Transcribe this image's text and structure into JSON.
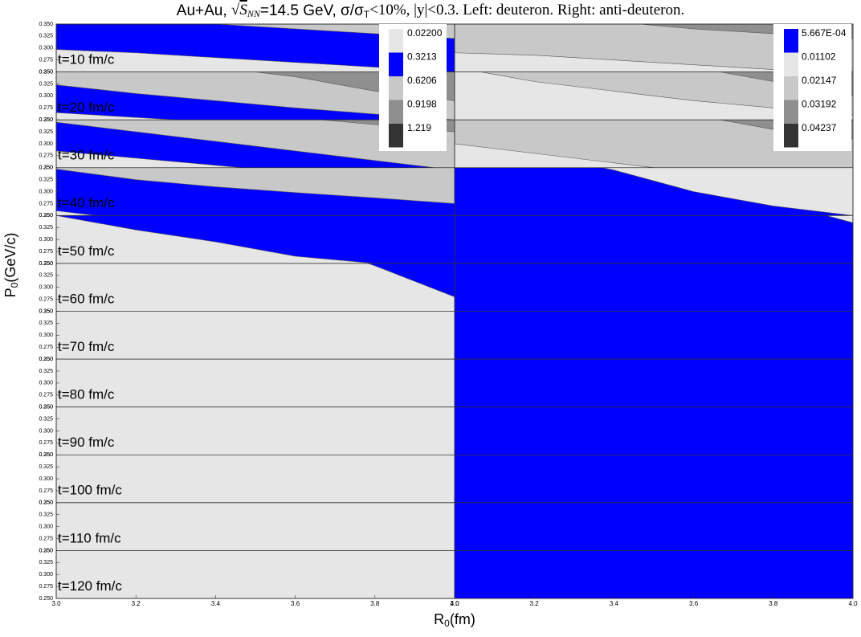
{
  "chart_data": {
    "type": "contour",
    "title": [
      "Au+Au, ",
      "√",
      "S",
      "NN",
      "=14.5 GeV, σ/σ",
      "T",
      "<10%, |y|<0.3. Left: deuteron. Right: anti-deuteron."
    ],
    "xlabel": [
      "R",
      "0",
      "(fm)"
    ],
    "ylabel": [
      "P",
      "0",
      "(GeV/c)"
    ],
    "xlim": [
      3.0,
      4.0
    ],
    "xticks": [
      {
        "value": 3.0,
        "label": "3.0"
      },
      {
        "value": 3.2,
        "label": "3.2"
      },
      {
        "value": 3.4,
        "label": "3.4"
      },
      {
        "value": 3.6,
        "label": "3.6"
      },
      {
        "value": 3.8,
        "label": "3.8"
      },
      {
        "value": 4.0,
        "label": "4.0"
      }
    ],
    "ylim": [
      0.25,
      0.35
    ],
    "yticks": [
      {
        "value": 0.25,
        "label": "0.250"
      },
      {
        "value": 0.275,
        "label": "0.275"
      },
      {
        "value": 0.3,
        "label": "0.300"
      },
      {
        "value": 0.325,
        "label": "0.325"
      },
      {
        "value": 0.35,
        "label": "0.350"
      }
    ],
    "x": [
      3.0,
      3.2,
      3.4,
      3.6,
      3.8,
      4.0
    ],
    "rows": [
      "t=10 fm/c",
      "t=20 fm/c",
      "t=30 fm/c",
      "t=40 fm/c",
      "t=50 fm/c",
      "t=60 fm/c",
      "t=70 fm/c",
      "t=80 fm/c",
      "t=90 fm/c",
      "t=100 fm/c",
      "t=110 fm/c",
      "t=120 fm/c"
    ],
    "panels": [
      {
        "levels": [
          {
            "value": 0.022,
            "label": "0.02200",
            "color": "#e6e6e6"
          },
          {
            "value": 0.3213,
            "label": "0.3213",
            "color": "#0000ff"
          },
          {
            "value": 0.6206,
            "label": "0.6206",
            "color": "#c8c8c8"
          },
          {
            "value": 0.9198,
            "label": "0.9198",
            "color": "#8f8f8f"
          },
          {
            "value": 1.219,
            "label": "1.219",
            "color": "#333333"
          }
        ],
        "rows": [
          {
            "bands": [
              0,
              1,
              2
            ],
            "boundaries": [
              [
                0.297,
                0.29,
                0.28,
                0.27,
                0.26,
                0.25
              ],
              [
                0.37,
                0.36,
                0.35,
                0.34,
                0.33,
                0.32
              ]
            ]
          },
          {
            "bands": [
              0,
              1,
              2,
              3
            ],
            "boundaries": [
              [
                0.265,
                0.255,
                0.245,
                0.235,
                0.225,
                0.215
              ],
              [
                0.323,
                0.305,
                0.29,
                0.275,
                0.262,
                0.25
              ],
              [
                0.4,
                0.38,
                0.36,
                0.34,
                0.31,
                0.29
              ]
            ]
          },
          {
            "bands": [
              0,
              1,
              2,
              3
            ],
            "boundaries": [
              [
                0.285,
                0.27,
                0.255,
                0.24,
                0.225,
                0.21
              ],
              [
                0.345,
                0.325,
                0.305,
                0.285,
                0.265,
                0.245
              ],
              [
                0.4,
                0.385,
                0.37,
                0.355,
                0.34,
                0.325
              ]
            ]
          },
          {
            "bands": [
              0,
              1,
              2
            ],
            "boundaries": [
              [
                0.26,
                0.24,
                0.22,
                0.2,
                0.18,
                0.16
              ],
              [
                0.347,
                0.325,
                0.31,
                0.298,
                0.287,
                0.275
              ]
            ]
          },
          {
            "bands": [
              0,
              1,
              2
            ],
            "boundaries": [
              [
                0.35,
                0.32,
                0.295,
                0.265,
                0.25,
                0.24
              ],
              [
                0.36,
                0.36,
                0.37,
                0.38,
                0.39,
                0.4
              ]
            ]
          },
          {
            "bands": [
              0,
              1
            ],
            "boundaries": [
              [
                0.5,
                0.5,
                0.45,
                0.4,
                0.345,
                0.28
              ]
            ]
          },
          {
            "bands": [
              0
            ],
            "boundaries": []
          },
          {
            "bands": [
              0
            ],
            "boundaries": []
          },
          {
            "bands": [
              0
            ],
            "boundaries": []
          },
          {
            "bands": [
              0
            ],
            "boundaries": []
          },
          {
            "bands": [
              0
            ],
            "boundaries": []
          },
          {
            "bands": [
              0
            ],
            "boundaries": []
          }
        ]
      },
      {
        "levels": [
          {
            "value": 0.0005667,
            "label": "5.667E-04",
            "color": "#0000ff"
          },
          {
            "value": 0.01102,
            "label": "0.01102",
            "color": "#e6e6e6"
          },
          {
            "value": 0.02147,
            "label": "0.02147",
            "color": "#c8c8c8"
          },
          {
            "value": 0.03192,
            "label": "0.03192",
            "color": "#8f8f8f"
          },
          {
            "value": 0.04237,
            "label": "0.04237",
            "color": "#333333"
          }
        ],
        "rows": [
          {
            "bands": [
              1,
              2,
              3
            ],
            "boundaries": [
              [
                0.29,
                0.285,
                0.275,
                0.265,
                0.255,
                0.245
              ],
              [
                0.38,
                0.37,
                0.355,
                0.34,
                0.33,
                0.32
              ]
            ]
          },
          {
            "bands": [
              1,
              2,
              3
            ],
            "boundaries": [
              [
                0.36,
                0.33,
                0.31,
                0.29,
                0.275,
                0.26
              ],
              [
                0.45,
                0.42,
                0.39,
                0.36,
                0.33,
                0.3
              ]
            ]
          },
          {
            "bands": [
              1,
              2,
              3
            ],
            "boundaries": [
              [
                0.3,
                0.28,
                0.26,
                0.24,
                0.22,
                0.2
              ],
              [
                0.42,
                0.4,
                0.38,
                0.36,
                0.33,
                0.31
              ]
            ]
          },
          {
            "bands": [
              0,
              1
            ],
            "boundaries": [
              [
                0.4,
                0.38,
                0.345,
                0.3,
                0.27,
                0.25
              ]
            ]
          },
          {
            "bands": [
              0,
              1
            ],
            "boundaries": [
              [
                0.5,
                0.5,
                0.5,
                0.5,
                0.38,
                0.335
              ]
            ]
          },
          {
            "bands": [
              0
            ],
            "boundaries": []
          },
          {
            "bands": [
              0
            ],
            "boundaries": []
          },
          {
            "bands": [
              0
            ],
            "boundaries": []
          },
          {
            "bands": [
              0
            ],
            "boundaries": []
          },
          {
            "bands": [
              0
            ],
            "boundaries": []
          },
          {
            "bands": [
              0
            ],
            "boundaries": []
          },
          {
            "bands": [
              0
            ],
            "boundaries": []
          }
        ]
      }
    ]
  }
}
